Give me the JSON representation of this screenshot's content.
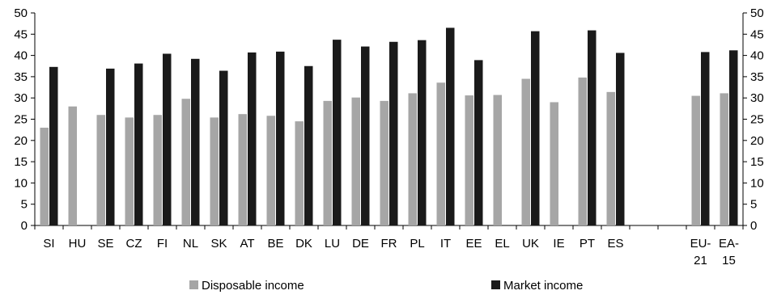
{
  "chart_data": {
    "type": "bar",
    "categories": [
      "SI",
      "HU",
      "SE",
      "CZ",
      "FI",
      "NL",
      "SK",
      "AT",
      "BE",
      "DK",
      "LU",
      "DE",
      "FR",
      "PL",
      "IT",
      "EE",
      "EL",
      "UK",
      "IE",
      "PT",
      "ES",
      "",
      "",
      "EU-21",
      "EA-15"
    ],
    "category_lines": [
      [
        "SI"
      ],
      [
        "HU"
      ],
      [
        "SE"
      ],
      [
        "CZ"
      ],
      [
        "FI"
      ],
      [
        "NL"
      ],
      [
        "SK"
      ],
      [
        "AT"
      ],
      [
        "BE"
      ],
      [
        "DK"
      ],
      [
        "LU"
      ],
      [
        "DE"
      ],
      [
        "FR"
      ],
      [
        "PL"
      ],
      [
        "IT"
      ],
      [
        "EE"
      ],
      [
        "EL"
      ],
      [
        "UK"
      ],
      [
        "IE"
      ],
      [
        "PT"
      ],
      [
        "ES"
      ],
      [
        ""
      ],
      [
        ""
      ],
      [
        "EU-",
        "21"
      ],
      [
        "EA-",
        "15"
      ]
    ],
    "series": [
      {
        "name": "Disposable income",
        "color": "#a6a6a6",
        "values": [
          23.0,
          28.0,
          26.0,
          25.4,
          26.0,
          29.8,
          25.4,
          26.2,
          25.8,
          24.5,
          29.3,
          30.1,
          29.3,
          31.1,
          33.6,
          30.6,
          30.7,
          34.5,
          29.0,
          34.8,
          31.4,
          null,
          null,
          30.5,
          31.1
        ]
      },
      {
        "name": "Market income",
        "color": "#1a1a1a",
        "values": [
          37.3,
          null,
          36.9,
          38.1,
          40.4,
          39.2,
          36.4,
          40.7,
          40.9,
          37.5,
          43.7,
          42.1,
          43.2,
          43.6,
          46.5,
          38.9,
          null,
          45.7,
          null,
          45.9,
          40.6,
          null,
          null,
          40.8,
          41.2
        ]
      }
    ],
    "ylim": [
      0,
      50
    ],
    "yticks": [
      0,
      5,
      10,
      15,
      20,
      25,
      30,
      35,
      40,
      45,
      50
    ],
    "dual_y_axis": true,
    "grid": false,
    "legend_position": "bottom"
  }
}
